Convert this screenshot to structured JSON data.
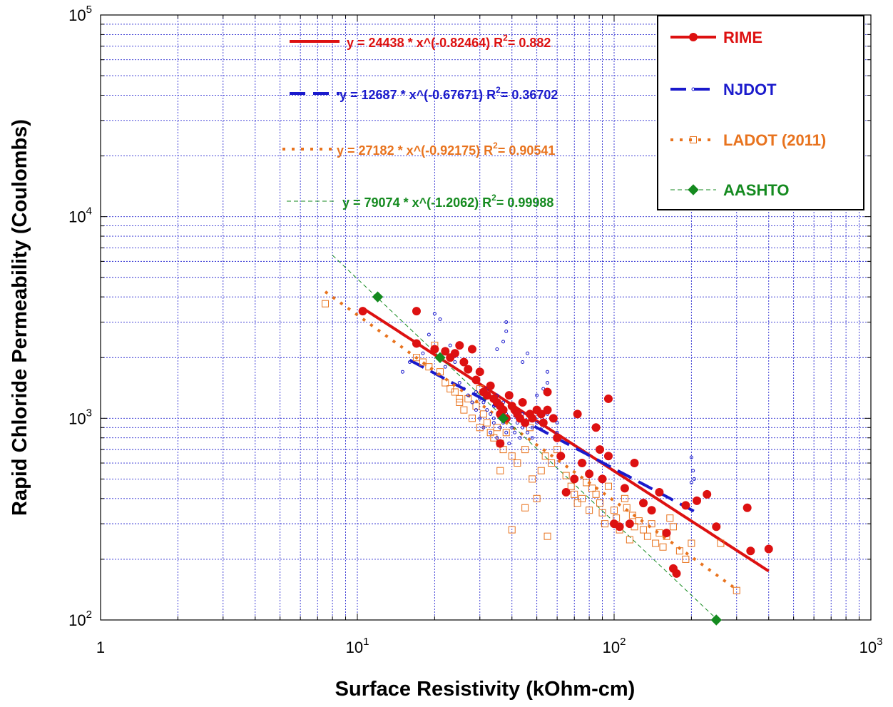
{
  "chart_data": {
    "type": "scatter",
    "title": "",
    "xlabel": "Surface Resistivity (kOhm-cm)",
    "ylabel": "Rapid Chloride Permeability (Coulombs)",
    "xscale": "log",
    "yscale": "log",
    "xlim": [
      1,
      1000
    ],
    "ylim": [
      100,
      100000
    ],
    "grid": true,
    "legend_position": "top-right",
    "x_ticks": [
      {
        "value": 1,
        "base": "1",
        "exp": ""
      },
      {
        "value": 10,
        "base": "10",
        "exp": "1"
      },
      {
        "value": 100,
        "base": "10",
        "exp": "2"
      },
      {
        "value": 1000,
        "base": "10",
        "exp": "3"
      }
    ],
    "y_ticks": [
      {
        "value": 100,
        "base": "10",
        "exp": "2"
      },
      {
        "value": 1000,
        "base": "10",
        "exp": "3"
      },
      {
        "value": 10000,
        "base": "10",
        "exp": "4"
      },
      {
        "value": 100000,
        "base": "10",
        "exp": "5"
      }
    ],
    "series": [
      {
        "name": "RIME",
        "color": "#dd1111",
        "marker": "circle",
        "fit": {
          "a": 24438,
          "b": -0.82464,
          "x_range": [
            10.5,
            400
          ],
          "style": "solid"
        },
        "equation": {
          "prefix": "y = 24438 * x^(-0.82464)   R",
          "sup": "2",
          "suffix": "= 0.882"
        },
        "points": [
          [
            10.5,
            3400
          ],
          [
            17,
            3400
          ],
          [
            17,
            2350
          ],
          [
            20,
            2200
          ],
          [
            22,
            2150
          ],
          [
            23,
            2000
          ],
          [
            24,
            2100
          ],
          [
            25,
            2300
          ],
          [
            26,
            1900
          ],
          [
            27,
            1750
          ],
          [
            28,
            2200
          ],
          [
            29,
            1550
          ],
          [
            30,
            1700
          ],
          [
            31,
            1350
          ],
          [
            32,
            1300
          ],
          [
            33,
            1450
          ],
          [
            34,
            1250
          ],
          [
            35,
            1200
          ],
          [
            36,
            1150
          ],
          [
            36,
            1050
          ],
          [
            37,
            1100
          ],
          [
            38,
            1000
          ],
          [
            39,
            1300
          ],
          [
            40,
            1150
          ],
          [
            41,
            1100
          ],
          [
            42,
            1050
          ],
          [
            43,
            1000
          ],
          [
            44,
            1200
          ],
          [
            45,
            950
          ],
          [
            47,
            1050
          ],
          [
            48,
            1000
          ],
          [
            50,
            1100
          ],
          [
            52,
            1050
          ],
          [
            53,
            950
          ],
          [
            55,
            1100
          ],
          [
            55,
            1350
          ],
          [
            36,
            750
          ],
          [
            58,
            1000
          ],
          [
            60,
            800
          ],
          [
            62,
            650
          ],
          [
            65,
            430
          ],
          [
            70,
            500
          ],
          [
            72,
            1050
          ],
          [
            75,
            600
          ],
          [
            80,
            530
          ],
          [
            85,
            900
          ],
          [
            88,
            700
          ],
          [
            90,
            500
          ],
          [
            95,
            1250
          ],
          [
            95,
            650
          ],
          [
            100,
            300
          ],
          [
            105,
            290
          ],
          [
            110,
            450
          ],
          [
            115,
            300
          ],
          [
            120,
            600
          ],
          [
            130,
            380
          ],
          [
            140,
            350
          ],
          [
            150,
            430
          ],
          [
            160,
            270
          ],
          [
            170,
            180
          ],
          [
            175,
            170
          ],
          [
            190,
            370
          ],
          [
            210,
            390
          ],
          [
            230,
            420
          ],
          [
            250,
            290
          ],
          [
            330,
            360
          ],
          [
            340,
            220
          ],
          [
            400,
            225
          ]
        ]
      },
      {
        "name": "NJDOT",
        "color": "#1a1acc",
        "marker": "small-circle",
        "fit": {
          "a": 12687,
          "b": -0.67671,
          "x_range": [
            16,
            205
          ],
          "style": "dashed"
        },
        "equation": {
          "prefix": "y = 12687 * x^(-0.67671)   R",
          "sup": "2",
          "suffix": "= 0.36702"
        },
        "points": [
          [
            15,
            1700
          ],
          [
            16,
            1900
          ],
          [
            18,
            2100
          ],
          [
            19,
            2600
          ],
          [
            20,
            3300
          ],
          [
            21,
            3100
          ],
          [
            22,
            1800
          ],
          [
            23,
            2300
          ],
          [
            24,
            1900
          ],
          [
            25,
            1500
          ],
          [
            26,
            1400
          ],
          [
            27,
            1300
          ],
          [
            28,
            1200
          ],
          [
            29,
            1100
          ],
          [
            29,
            1350
          ],
          [
            30,
            1000
          ],
          [
            30,
            1250
          ],
          [
            31,
            1200
          ],
          [
            31,
            900
          ],
          [
            32,
            1100
          ],
          [
            32,
            1400
          ],
          [
            33,
            1050
          ],
          [
            33,
            850
          ],
          [
            34,
            1000
          ],
          [
            34,
            1150
          ],
          [
            34,
            950
          ],
          [
            35,
            800
          ],
          [
            35,
            1300
          ],
          [
            36,
            900
          ],
          [
            36,
            1100
          ],
          [
            37,
            950
          ],
          [
            37,
            1200
          ],
          [
            38,
            850
          ],
          [
            38,
            1050
          ],
          [
            39,
            1000
          ],
          [
            39,
            750
          ],
          [
            40,
            900
          ],
          [
            40,
            1150
          ],
          [
            41,
            850
          ],
          [
            42,
            950
          ],
          [
            42,
            1100
          ],
          [
            43,
            800
          ],
          [
            44,
            900
          ],
          [
            44,
            1050
          ],
          [
            45,
            950
          ],
          [
            46,
            850
          ],
          [
            47,
            1000
          ],
          [
            48,
            900
          ],
          [
            48,
            800
          ],
          [
            50,
            950
          ],
          [
            50,
            1300
          ],
          [
            52,
            880
          ],
          [
            53,
            1400
          ],
          [
            55,
            1700
          ],
          [
            55,
            1050
          ],
          [
            57,
            1000
          ],
          [
            60,
            950
          ],
          [
            38,
            3000
          ],
          [
            38,
            2700
          ],
          [
            37,
            2400
          ],
          [
            60,
            850
          ],
          [
            35,
            2200
          ],
          [
            44,
            1900
          ],
          [
            46,
            2100
          ],
          [
            55,
            1500
          ],
          [
            200,
            640
          ],
          [
            205,
            500
          ],
          [
            200,
            480
          ],
          [
            203,
            550
          ]
        ]
      },
      {
        "name": "LADOT (2011)",
        "color": "#e8731e",
        "marker": "square",
        "fit": {
          "a": 27182,
          "b": -0.92175,
          "x_range": [
            7.5,
            300
          ],
          "style": "dotted"
        },
        "equation": {
          "prefix": "y = 27182 * x^(-0.92175)   R",
          "sup": "2",
          "suffix": "= 0.90541"
        },
        "points": [
          [
            7.5,
            3700
          ],
          [
            17,
            2000
          ],
          [
            18,
            1900
          ],
          [
            19,
            1800
          ],
          [
            20,
            2300
          ],
          [
            21,
            1700
          ],
          [
            22,
            1500
          ],
          [
            23,
            1400
          ],
          [
            24,
            1350
          ],
          [
            25,
            1200
          ],
          [
            26,
            1100
          ],
          [
            27,
            1250
          ],
          [
            28,
            1000
          ],
          [
            29,
            1150
          ],
          [
            30,
            900
          ],
          [
            31,
            1050
          ],
          [
            32,
            950
          ],
          [
            33,
            850
          ],
          [
            34,
            800
          ],
          [
            35,
            900
          ],
          [
            36,
            750
          ],
          [
            37,
            700
          ],
          [
            38,
            850
          ],
          [
            40,
            650
          ],
          [
            42,
            600
          ],
          [
            45,
            700
          ],
          [
            47,
            900
          ],
          [
            48,
            500
          ],
          [
            50,
            400
          ],
          [
            52,
            550
          ],
          [
            54,
            650
          ],
          [
            57,
            600
          ],
          [
            60,
            700
          ],
          [
            65,
            520
          ],
          [
            68,
            460
          ],
          [
            70,
            420
          ],
          [
            72,
            380
          ],
          [
            75,
            400
          ],
          [
            78,
            480
          ],
          [
            80,
            350
          ],
          [
            82,
            450
          ],
          [
            85,
            420
          ],
          [
            88,
            380
          ],
          [
            90,
            340
          ],
          [
            92,
            300
          ],
          [
            95,
            460
          ],
          [
            100,
            350
          ],
          [
            102,
            320
          ],
          [
            105,
            280
          ],
          [
            110,
            400
          ],
          [
            112,
            360
          ],
          [
            115,
            250
          ],
          [
            118,
            330
          ],
          [
            120,
            290
          ],
          [
            125,
            310
          ],
          [
            130,
            280
          ],
          [
            135,
            260
          ],
          [
            140,
            300
          ],
          [
            145,
            240
          ],
          [
            150,
            270
          ],
          [
            155,
            230
          ],
          [
            160,
            260
          ],
          [
            165,
            320
          ],
          [
            170,
            290
          ],
          [
            180,
            220
          ],
          [
            190,
            200
          ],
          [
            200,
            240
          ],
          [
            260,
            240
          ],
          [
            300,
            140
          ],
          [
            40,
            280
          ],
          [
            30,
            1400
          ],
          [
            25,
            1250
          ],
          [
            36,
            550
          ],
          [
            55,
            260
          ],
          [
            45,
            360
          ]
        ]
      },
      {
        "name": "AASHTO",
        "color": "#148a1f",
        "marker": "diamond",
        "fit": {
          "a": 79074,
          "b": -1.2062,
          "x_range": [
            8,
            250
          ],
          "style": "thin-dashed"
        },
        "equation": {
          "prefix": "y = 79074 * x^(-1.2062)   R",
          "sup": "2",
          "suffix": "= 0.99988"
        },
        "points": [
          [
            12,
            4000
          ],
          [
            21,
            2000
          ],
          [
            37,
            1000
          ],
          [
            250,
            100
          ]
        ]
      }
    ]
  }
}
